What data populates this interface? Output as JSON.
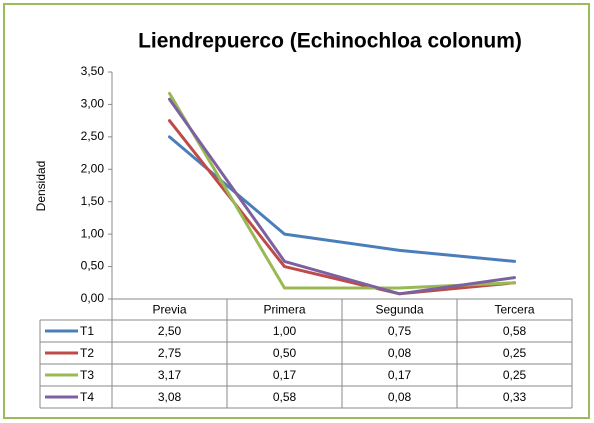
{
  "chart_data": {
    "type": "line",
    "title": "Liendrepuerco (Echinochloa colonum)",
    "y_label": "Densidad",
    "categories": [
      "Previa",
      "Primera",
      "Segunda",
      "Tercera"
    ],
    "series": [
      {
        "name": "T1",
        "color": "#4a7ebb",
        "values": [
          2.5,
          1.0,
          0.75,
          0.58
        ],
        "value_labels": [
          "2,50",
          "1,00",
          "0,75",
          "0,58"
        ]
      },
      {
        "name": "T2",
        "color": "#be4b48",
        "values": [
          2.75,
          0.5,
          0.08,
          0.25
        ],
        "value_labels": [
          "2,75",
          "0,50",
          "0,08",
          "0,25"
        ]
      },
      {
        "name": "T3",
        "color": "#98b954",
        "values": [
          3.17,
          0.17,
          0.17,
          0.25
        ],
        "value_labels": [
          "3,17",
          "0,17",
          "0,17",
          "0,25"
        ]
      },
      {
        "name": "T4",
        "color": "#7d60a0",
        "values": [
          3.08,
          0.58,
          0.08,
          0.33
        ],
        "value_labels": [
          "3,08",
          "0,58",
          "0,08",
          "0,33"
        ]
      }
    ],
    "ylim": [
      0,
      3.5
    ],
    "yticks": [
      {
        "value": 0,
        "label": "0,00"
      },
      {
        "value": 0.5,
        "label": "0,50"
      },
      {
        "value": 1,
        "label": "1,00"
      },
      {
        "value": 1.5,
        "label": "1,50"
      },
      {
        "value": 2,
        "label": "2,00"
      },
      {
        "value": 2.5,
        "label": "2,50"
      },
      {
        "value": 3,
        "label": "3,00"
      },
      {
        "value": 3.5,
        "label": "3,50"
      }
    ],
    "grid": false
  }
}
